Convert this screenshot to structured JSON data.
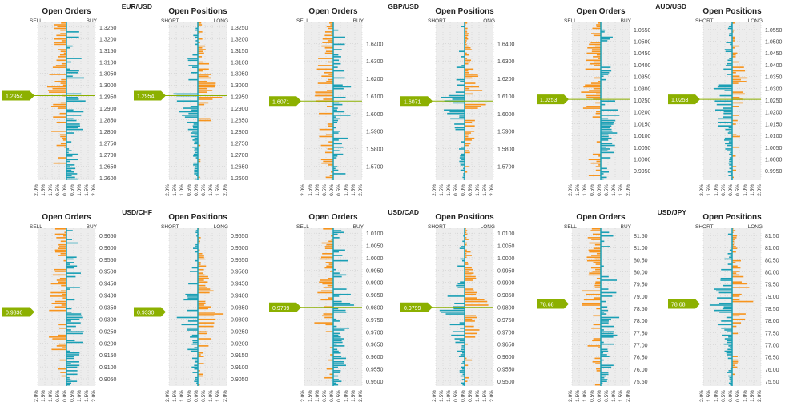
{
  "colors": {
    "orange": "#f7941d",
    "teal": "#1a9fb5",
    "price_line": "#8cb000",
    "panel_bg": "#ededed",
    "grid": "#c8c8c8"
  },
  "x_axis_labels": [
    "2.0%",
    "1.5%",
    "1.0%",
    "0.5%",
    "0.0%",
    "0.5%",
    "1.0%",
    "1.5%",
    "2.0%"
  ],
  "chart_data": [
    {
      "type": "bar",
      "pair": "EUR/USD",
      "current_price": "1.2954",
      "orders": {
        "title": "Open Orders",
        "left_label": "SELL",
        "right_label": "BUY"
      },
      "positions": {
        "title": "Open Positions",
        "left_label": "SHORT",
        "right_label": "LONG"
      },
      "y_ticks": [
        "1.3250",
        "1.3200",
        "1.3150",
        "1.3100",
        "1.3050",
        "1.3000",
        "1.2950",
        "1.2900",
        "1.2850",
        "1.2800",
        "1.2750",
        "1.2700",
        "1.2650",
        "1.2600"
      ],
      "y_range": [
        1.259,
        1.327
      ],
      "price_value": 1.2954,
      "x_range_pct": [
        -2.0,
        2.0
      ]
    },
    {
      "type": "bar",
      "pair": "GBP/USD",
      "current_price": "1.6071",
      "orders": {
        "title": "Open Orders",
        "left_label": "SELL",
        "right_label": "BUY"
      },
      "positions": {
        "title": "Open Positions",
        "left_label": "SHORT",
        "right_label": "LONG"
      },
      "y_ticks": [
        "1.6400",
        "1.6300",
        "1.6200",
        "1.6100",
        "1.6000",
        "1.5900",
        "1.5800",
        "1.5700"
      ],
      "y_range": [
        1.562,
        1.652
      ],
      "price_value": 1.6071,
      "x_range_pct": [
        -2.0,
        2.0
      ]
    },
    {
      "type": "bar",
      "pair": "AUD/USD",
      "current_price": "1.0253",
      "orders": {
        "title": "Open Orders",
        "left_label": "SELL",
        "right_label": "BUY"
      },
      "positions": {
        "title": "Open Positions",
        "left_label": "SHORT",
        "right_label": "LONG"
      },
      "y_ticks": [
        "1.0550",
        "1.0500",
        "1.0450",
        "1.0400",
        "1.0350",
        "1.0300",
        "1.0250",
        "1.0200",
        "1.0150",
        "1.0100",
        "1.0050",
        "1.0000",
        "0.9950"
      ],
      "y_range": [
        0.991,
        1.058
      ],
      "price_value": 1.0253,
      "x_range_pct": [
        -2.0,
        2.0
      ]
    },
    {
      "type": "bar",
      "pair": "USD/CHF",
      "current_price": "0.9330",
      "orders": {
        "title": "Open Orders",
        "left_label": "SELL",
        "right_label": "BUY"
      },
      "positions": {
        "title": "Open Positions",
        "left_label": "SHORT",
        "right_label": "LONG"
      },
      "y_ticks": [
        "0.9650",
        "0.9600",
        "0.9550",
        "0.9500",
        "0.9450",
        "0.9400",
        "0.9350",
        "0.9300",
        "0.9250",
        "0.9200",
        "0.9150",
        "0.9100",
        "0.9050"
      ],
      "y_range": [
        0.902,
        0.968
      ],
      "price_value": 0.933,
      "x_range_pct": [
        -2.0,
        2.0
      ]
    },
    {
      "type": "bar",
      "pair": "USD/CAD",
      "current_price": "0.9799",
      "orders": {
        "title": "Open Orders",
        "left_label": "SELL",
        "right_label": "BUY"
      },
      "positions": {
        "title": "Open Positions",
        "left_label": "SHORT",
        "right_label": "LONG"
      },
      "y_ticks": [
        "1.0100",
        "1.0050",
        "1.0000",
        "0.9950",
        "0.9900",
        "0.9850",
        "0.9800",
        "0.9750",
        "0.9700",
        "0.9650",
        "0.9600",
        "0.9550",
        "0.9500"
      ],
      "y_range": [
        0.948,
        1.012
      ],
      "price_value": 0.9799,
      "x_range_pct": [
        -2.0,
        2.0
      ]
    },
    {
      "type": "bar",
      "pair": "USD/JPY",
      "current_price": "78.68",
      "orders": {
        "title": "Open Orders",
        "left_label": "SELL",
        "right_label": "BUY"
      },
      "positions": {
        "title": "Open Positions",
        "left_label": "SHORT",
        "right_label": "LONG"
      },
      "y_ticks": [
        "81.50",
        "81.00",
        "80.50",
        "80.00",
        "79.50",
        "79.00",
        "78.50",
        "78.00",
        "77.50",
        "77.00",
        "76.50",
        "76.00",
        "75.50"
      ],
      "y_range": [
        75.3,
        81.8
      ],
      "price_value": 78.68,
      "x_range_pct": [
        -2.0,
        2.0
      ]
    }
  ]
}
